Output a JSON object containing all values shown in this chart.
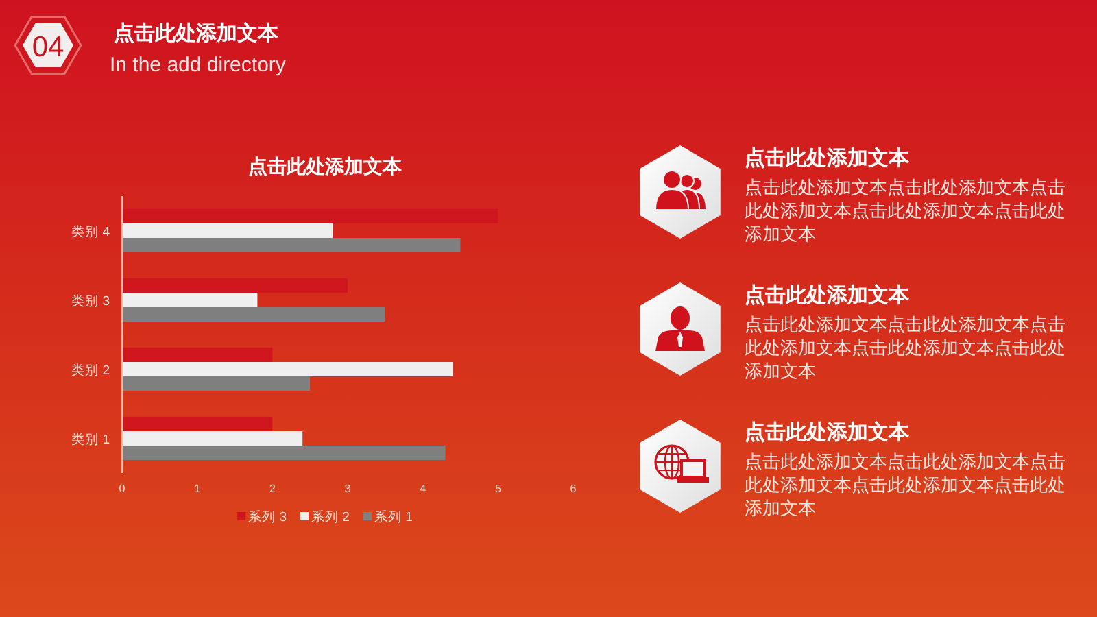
{
  "chart_data": [
    {
      "type": "other",
      "title": "点击此处添加文本",
      "subtitle": "In the add directory",
      "annotations": [
        "04"
      ]
    },
    {
      "type": "bar",
      "orientation": "horizontal",
      "title": "点击此处添加文本",
      "categories": [
        "类别 4",
        "类别 3",
        "类别 2",
        "类别 1"
      ],
      "series": [
        {
          "name": "系列 3",
          "color": "#cf161e",
          "values": [
            5,
            3,
            2,
            2
          ]
        },
        {
          "name": "系列 2",
          "color": "#efefef",
          "values": [
            2.8,
            1.8,
            4.4,
            2.4
          ]
        },
        {
          "name": "系列 1",
          "color": "#7f7f7f",
          "values": [
            4.5,
            3.5,
            2.5,
            4.3
          ]
        }
      ],
      "xlim": [
        0,
        6
      ],
      "xticks": [
        0,
        1,
        2,
        3,
        4,
        5,
        6
      ],
      "legend": "bottom"
    },
    {
      "type": "other",
      "annotations": [
        "点击此处添加文本",
        "点击此处添加文本点击此处添加文本点击此处添加文本点击此处添加文本点击此处添加文本",
        "点击此处添加文本",
        "点击此处添加文本点击此处添加文本点击此处添加文本点击此处添加文本点击此处添加文本",
        "点击此处添加文本",
        "点击此处添加文本点击此处添加文本点击此处添加文本点击此处添加文本点击此处添加文本"
      ]
    }
  ]
}
